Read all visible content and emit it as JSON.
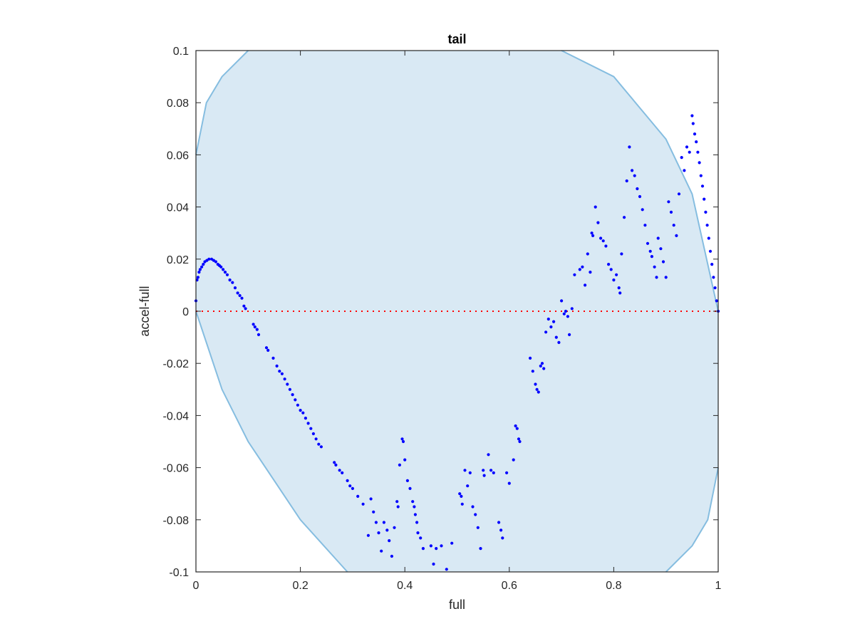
{
  "chart_data": {
    "type": "scatter",
    "title": "tail",
    "xlabel": "full",
    "ylabel": "accel-full",
    "xlim": [
      0,
      1
    ],
    "ylim": [
      -0.1,
      0.1
    ],
    "xticks": [
      0,
      0.2,
      0.4,
      0.6,
      0.8,
      1
    ],
    "xtick_labels": [
      "0",
      "0.2",
      "0.4",
      "0.6",
      "0.8",
      "1"
    ],
    "yticks": [
      -0.1,
      -0.08,
      -0.06,
      -0.04,
      -0.02,
      0,
      0.02,
      0.04,
      0.06,
      0.08,
      0.1
    ],
    "ytick_labels": [
      "-0.1",
      "-0.08",
      "-0.06",
      "-0.04",
      "-0.02",
      "0",
      "0.02",
      "0.04",
      "0.06",
      "0.08",
      "0.1"
    ],
    "grid": false,
    "colors": {
      "points": "#0000ff",
      "region_fill": "#d9e9f4",
      "region_edge": "#85bde0",
      "zero_line": "#ff0000"
    },
    "reference_line": {
      "y": 0,
      "style": "dotted"
    },
    "boundary": {
      "upper_left": [
        [
          0,
          0.06
        ],
        [
          0.02,
          0.08
        ],
        [
          0.05,
          0.09
        ],
        [
          0.1,
          0.1
        ]
      ],
      "upper_right": [
        [
          0.7,
          0.1
        ],
        [
          0.8,
          0.09
        ],
        [
          0.9,
          0.066
        ],
        [
          0.95,
          0.045
        ],
        [
          1,
          0
        ]
      ],
      "lower_left": [
        [
          0,
          0
        ],
        [
          0.05,
          -0.03
        ],
        [
          0.1,
          -0.05
        ],
        [
          0.2,
          -0.08
        ],
        [
          0.29,
          -0.1
        ]
      ],
      "lower_right": [
        [
          0.9,
          -0.1
        ],
        [
          0.95,
          -0.09
        ],
        [
          0.98,
          -0.08
        ],
        [
          1,
          -0.06
        ]
      ]
    },
    "series": [
      {
        "values": [
          [
            0,
            0.004
          ],
          [
            0.002,
            0.012
          ],
          [
            0.004,
            0.013
          ],
          [
            0.006,
            0.015
          ],
          [
            0.008,
            0.016
          ],
          [
            0.011,
            0.017
          ],
          [
            0.014,
            0.018
          ],
          [
            0.017,
            0.019
          ],
          [
            0.021,
            0.0195
          ],
          [
            0.025,
            0.02
          ],
          [
            0.03,
            0.02
          ],
          [
            0.034,
            0.0195
          ],
          [
            0.038,
            0.019
          ],
          [
            0.042,
            0.018
          ],
          [
            0.045,
            0.0175
          ],
          [
            0.048,
            0.017
          ],
          [
            0.052,
            0.016
          ],
          [
            0.056,
            0.015
          ],
          [
            0.06,
            0.014
          ],
          [
            0.065,
            0.012
          ],
          [
            0.07,
            0.011
          ],
          [
            0.075,
            0.009
          ],
          [
            0.08,
            0.007
          ],
          [
            0.084,
            0.006
          ],
          [
            0.088,
            0.005
          ],
          [
            0.092,
            0.002
          ],
          [
            0.095,
            0.001
          ],
          [
            0.11,
            -0.005
          ],
          [
            0.113,
            -0.006
          ],
          [
            0.117,
            -0.007
          ],
          [
            0.12,
            -0.009
          ],
          [
            0.135,
            -0.014
          ],
          [
            0.138,
            -0.015
          ],
          [
            0.148,
            -0.018
          ],
          [
            0.155,
            -0.021
          ],
          [
            0.16,
            -0.023
          ],
          [
            0.165,
            -0.024
          ],
          [
            0.17,
            -0.026
          ],
          [
            0.175,
            -0.028
          ],
          [
            0.18,
            -0.03
          ],
          [
            0.185,
            -0.032
          ],
          [
            0.19,
            -0.034
          ],
          [
            0.195,
            -0.036
          ],
          [
            0.2,
            -0.038
          ],
          [
            0.205,
            -0.039
          ],
          [
            0.21,
            -0.041
          ],
          [
            0.215,
            -0.043
          ],
          [
            0.22,
            -0.045
          ],
          [
            0.225,
            -0.047
          ],
          [
            0.23,
            -0.049
          ],
          [
            0.235,
            -0.051
          ],
          [
            0.24,
            -0.052
          ],
          [
            0.265,
            -0.058
          ],
          [
            0.268,
            -0.059
          ],
          [
            0.275,
            -0.061
          ],
          [
            0.28,
            -0.062
          ],
          [
            0.29,
            -0.065
          ],
          [
            0.295,
            -0.067
          ],
          [
            0.3,
            -0.068
          ],
          [
            0.31,
            -0.071
          ],
          [
            0.32,
            -0.074
          ],
          [
            0.335,
            -0.072
          ],
          [
            0.34,
            -0.077
          ],
          [
            0.345,
            -0.081
          ],
          [
            0.35,
            -0.085
          ],
          [
            0.355,
            -0.092
          ],
          [
            0.33,
            -0.086
          ],
          [
            0.36,
            -0.081
          ],
          [
            0.366,
            -0.084
          ],
          [
            0.37,
            -0.088
          ],
          [
            0.375,
            -0.094
          ],
          [
            0.38,
            -0.083
          ],
          [
            0.385,
            -0.073
          ],
          [
            0.387,
            -0.075
          ],
          [
            0.39,
            -0.059
          ],
          [
            0.395,
            -0.049
          ],
          [
            0.397,
            -0.05
          ],
          [
            0.4,
            -0.057
          ],
          [
            0.405,
            -0.065
          ],
          [
            0.41,
            -0.068
          ],
          [
            0.415,
            -0.073
          ],
          [
            0.418,
            -0.075
          ],
          [
            0.42,
            -0.078
          ],
          [
            0.423,
            -0.081
          ],
          [
            0.425,
            -0.085
          ],
          [
            0.43,
            -0.087
          ],
          [
            0.435,
            -0.091
          ],
          [
            0.45,
            -0.09
          ],
          [
            0.455,
            -0.097
          ],
          [
            0.46,
            -0.091
          ],
          [
            0.47,
            -0.09
          ],
          [
            0.48,
            -0.099
          ],
          [
            0.49,
            -0.089
          ],
          [
            0.505,
            -0.07
          ],
          [
            0.508,
            -0.071
          ],
          [
            0.51,
            -0.074
          ],
          [
            0.515,
            -0.061
          ],
          [
            0.52,
            -0.067
          ],
          [
            0.525,
            -0.062
          ],
          [
            0.53,
            -0.075
          ],
          [
            0.535,
            -0.078
          ],
          [
            0.54,
            -0.083
          ],
          [
            0.545,
            -0.091
          ],
          [
            0.55,
            -0.061
          ],
          [
            0.552,
            -0.063
          ],
          [
            0.56,
            -0.055
          ],
          [
            0.565,
            -0.061
          ],
          [
            0.57,
            -0.062
          ],
          [
            0.58,
            -0.081
          ],
          [
            0.584,
            -0.084
          ],
          [
            0.587,
            -0.087
          ],
          [
            0.595,
            -0.062
          ],
          [
            0.6,
            -0.066
          ],
          [
            0.608,
            -0.057
          ],
          [
            0.612,
            -0.044
          ],
          [
            0.615,
            -0.045
          ],
          [
            0.618,
            -0.049
          ],
          [
            0.62,
            -0.05
          ],
          [
            0.64,
            -0.018
          ],
          [
            0.645,
            -0.023
          ],
          [
            0.65,
            -0.028
          ],
          [
            0.653,
            -0.03
          ],
          [
            0.656,
            -0.031
          ],
          [
            0.66,
            -0.021
          ],
          [
            0.663,
            -0.02
          ],
          [
            0.666,
            -0.022
          ],
          [
            0.67,
            -0.008
          ],
          [
            0.675,
            -0.003
          ],
          [
            0.68,
            -0.006
          ],
          [
            0.685,
            -0.004
          ],
          [
            0.69,
            -0.01
          ],
          [
            0.695,
            -0.012
          ],
          [
            0.7,
            0.004
          ],
          [
            0.705,
            -0.001
          ],
          [
            0.708,
            0.0
          ],
          [
            0.712,
            -0.002
          ],
          [
            0.715,
            -0.009
          ],
          [
            0.72,
            0.001
          ],
          [
            0.725,
            0.014
          ],
          [
            0.735,
            0.016
          ],
          [
            0.74,
            0.017
          ],
          [
            0.745,
            0.01
          ],
          [
            0.75,
            0.022
          ],
          [
            0.755,
            0.015
          ],
          [
            0.758,
            0.03
          ],
          [
            0.76,
            0.029
          ],
          [
            0.765,
            0.04
          ],
          [
            0.77,
            0.034
          ],
          [
            0.775,
            0.028
          ],
          [
            0.78,
            0.027
          ],
          [
            0.785,
            0.025
          ],
          [
            0.79,
            0.018
          ],
          [
            0.795,
            0.016
          ],
          [
            0.8,
            0.012
          ],
          [
            0.805,
            0.014
          ],
          [
            0.81,
            0.009
          ],
          [
            0.812,
            0.007
          ],
          [
            0.815,
            0.022
          ],
          [
            0.82,
            0.036
          ],
          [
            0.825,
            0.05
          ],
          [
            0.83,
            0.063
          ],
          [
            0.835,
            0.054
          ],
          [
            0.84,
            0.052
          ],
          [
            0.845,
            0.047
          ],
          [
            0.85,
            0.044
          ],
          [
            0.855,
            0.039
          ],
          [
            0.86,
            0.033
          ],
          [
            0.865,
            0.026
          ],
          [
            0.87,
            0.023
          ],
          [
            0.873,
            0.021
          ],
          [
            0.878,
            0.017
          ],
          [
            0.882,
            0.013
          ],
          [
            0.885,
            0.028
          ],
          [
            0.89,
            0.024
          ],
          [
            0.895,
            0.019
          ],
          [
            0.9,
            0.013
          ],
          [
            0.905,
            0.042
          ],
          [
            0.91,
            0.038
          ],
          [
            0.915,
            0.033
          ],
          [
            0.92,
            0.029
          ],
          [
            0.925,
            0.045
          ],
          [
            0.93,
            0.059
          ],
          [
            0.935,
            0.054
          ],
          [
            0.94,
            0.063
          ],
          [
            0.945,
            0.061
          ],
          [
            0.95,
            0.075
          ],
          [
            0.952,
            0.072
          ],
          [
            0.955,
            0.068
          ],
          [
            0.958,
            0.065
          ],
          [
            0.961,
            0.061
          ],
          [
            0.964,
            0.057
          ],
          [
            0.967,
            0.052
          ],
          [
            0.97,
            0.048
          ],
          [
            0.973,
            0.043
          ],
          [
            0.976,
            0.038
          ],
          [
            0.979,
            0.033
          ],
          [
            0.982,
            0.028
          ],
          [
            0.985,
            0.023
          ],
          [
            0.988,
            0.018
          ],
          [
            0.991,
            0.013
          ],
          [
            0.994,
            0.009
          ],
          [
            0.997,
            0.004
          ],
          [
            1.0,
            0.0
          ]
        ]
      }
    ]
  }
}
